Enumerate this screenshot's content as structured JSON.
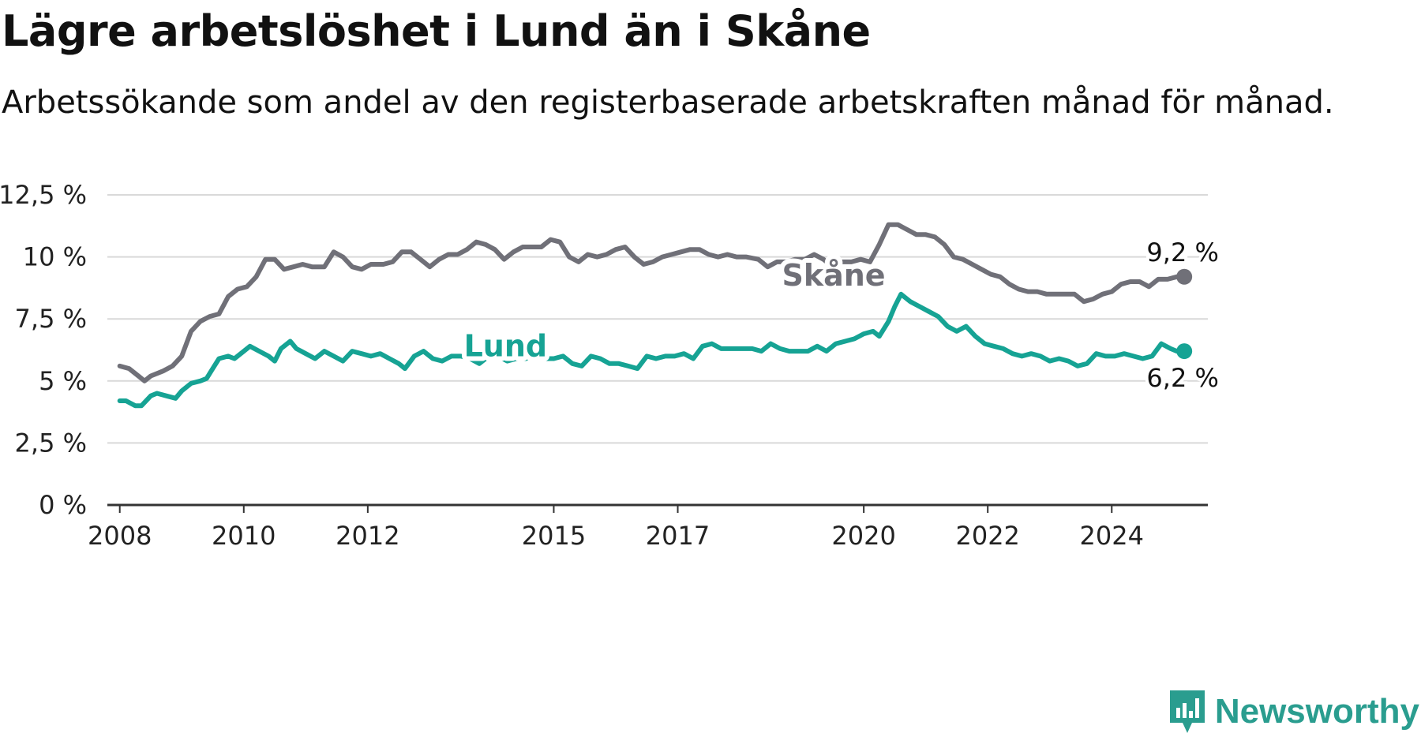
{
  "header": {
    "title": "Lägre arbetslöshet i Lund än i Skåne",
    "subtitle": "Arbetssökande som andel av den registerbaserade arbetskraften månad för månad."
  },
  "brand": {
    "name": "Newsworthy",
    "icon": "newsworthy-logo-icon",
    "color": "#2a9d8f"
  },
  "chart_data": {
    "type": "line",
    "title": "Lägre arbetslöshet i Lund än i Skåne",
    "subtitle": "Arbetssökande som andel av den registerbaserade arbetskraften månad för månad.",
    "xlabel": "",
    "ylabel": "",
    "xlim": [
      2007.8,
      2025.55
    ],
    "ylim": [
      0,
      12.5
    ],
    "y_ticks": [
      0,
      2.5,
      5,
      7.5,
      10,
      12.5
    ],
    "y_tick_labels": [
      "0 %",
      "2,5 %",
      "5 %",
      "7,5 %",
      "10 %",
      "12,5 %"
    ],
    "x_ticks": [
      2008,
      2010,
      2012,
      2015,
      2017,
      2020,
      2022,
      2024
    ],
    "x_tick_labels": [
      "2008",
      "2010",
      "2012",
      "2015",
      "2017",
      "2020",
      "2022",
      "2024"
    ],
    "grid": true,
    "legend": "none (direct labels)",
    "series": [
      {
        "name": "Skåne",
        "color": "#707078",
        "end_label": "9,2 %",
        "points": [
          [
            2008.0,
            5.6
          ],
          [
            2008.15,
            5.5
          ],
          [
            2008.3,
            5.2
          ],
          [
            2008.4,
            5.0
          ],
          [
            2008.5,
            5.2
          ],
          [
            2008.7,
            5.4
          ],
          [
            2008.85,
            5.6
          ],
          [
            2009.0,
            6.0
          ],
          [
            2009.15,
            7.0
          ],
          [
            2009.3,
            7.4
          ],
          [
            2009.45,
            7.6
          ],
          [
            2009.6,
            7.7
          ],
          [
            2009.75,
            8.4
          ],
          [
            2009.9,
            8.7
          ],
          [
            2010.05,
            8.8
          ],
          [
            2010.2,
            9.2
          ],
          [
            2010.35,
            9.9
          ],
          [
            2010.5,
            9.9
          ],
          [
            2010.65,
            9.5
          ],
          [
            2010.8,
            9.6
          ],
          [
            2010.95,
            9.7
          ],
          [
            2011.1,
            9.6
          ],
          [
            2011.3,
            9.6
          ],
          [
            2011.45,
            10.2
          ],
          [
            2011.6,
            10.0
          ],
          [
            2011.75,
            9.6
          ],
          [
            2011.9,
            9.5
          ],
          [
            2012.05,
            9.7
          ],
          [
            2012.25,
            9.7
          ],
          [
            2012.4,
            9.8
          ],
          [
            2012.55,
            10.2
          ],
          [
            2012.7,
            10.2
          ],
          [
            2012.85,
            9.9
          ],
          [
            2013.0,
            9.6
          ],
          [
            2013.15,
            9.9
          ],
          [
            2013.3,
            10.1
          ],
          [
            2013.45,
            10.1
          ],
          [
            2013.6,
            10.3
          ],
          [
            2013.75,
            10.6
          ],
          [
            2013.9,
            10.5
          ],
          [
            2014.05,
            10.3
          ],
          [
            2014.2,
            9.9
          ],
          [
            2014.35,
            10.2
          ],
          [
            2014.5,
            10.4
          ],
          [
            2014.65,
            10.4
          ],
          [
            2014.8,
            10.4
          ],
          [
            2014.95,
            10.7
          ],
          [
            2015.1,
            10.6
          ],
          [
            2015.25,
            10.0
          ],
          [
            2015.4,
            9.8
          ],
          [
            2015.55,
            10.1
          ],
          [
            2015.7,
            10.0
          ],
          [
            2015.85,
            10.1
          ],
          [
            2016.0,
            10.3
          ],
          [
            2016.15,
            10.4
          ],
          [
            2016.3,
            10.0
          ],
          [
            2016.45,
            9.7
          ],
          [
            2016.6,
            9.8
          ],
          [
            2016.75,
            10.0
          ],
          [
            2016.9,
            10.1
          ],
          [
            2017.05,
            10.2
          ],
          [
            2017.2,
            10.3
          ],
          [
            2017.35,
            10.3
          ],
          [
            2017.5,
            10.1
          ],
          [
            2017.65,
            10.0
          ],
          [
            2017.8,
            10.1
          ],
          [
            2017.95,
            10.0
          ],
          [
            2018.1,
            10.0
          ],
          [
            2018.3,
            9.9
          ],
          [
            2018.45,
            9.6
          ],
          [
            2018.6,
            9.8
          ],
          [
            2018.75,
            9.8
          ],
          [
            2018.9,
            9.9
          ],
          [
            2019.05,
            9.9
          ],
          [
            2019.2,
            10.1
          ],
          [
            2019.35,
            9.9
          ],
          [
            2019.5,
            9.6
          ],
          [
            2019.65,
            9.8
          ],
          [
            2019.8,
            9.8
          ],
          [
            2019.95,
            9.9
          ],
          [
            2020.1,
            9.8
          ],
          [
            2020.25,
            10.5
          ],
          [
            2020.4,
            11.3
          ],
          [
            2020.55,
            11.3
          ],
          [
            2020.7,
            11.1
          ],
          [
            2020.85,
            10.9
          ],
          [
            2021.0,
            10.9
          ],
          [
            2021.15,
            10.8
          ],
          [
            2021.3,
            10.5
          ],
          [
            2021.45,
            10.0
          ],
          [
            2021.6,
            9.9
          ],
          [
            2021.75,
            9.7
          ],
          [
            2021.9,
            9.5
          ],
          [
            2022.05,
            9.3
          ],
          [
            2022.2,
            9.2
          ],
          [
            2022.35,
            8.9
          ],
          [
            2022.5,
            8.7
          ],
          [
            2022.65,
            8.6
          ],
          [
            2022.8,
            8.6
          ],
          [
            2022.95,
            8.5
          ],
          [
            2023.1,
            8.5
          ],
          [
            2023.25,
            8.5
          ],
          [
            2023.4,
            8.5
          ],
          [
            2023.55,
            8.2
          ],
          [
            2023.7,
            8.3
          ],
          [
            2023.85,
            8.5
          ],
          [
            2024.0,
            8.6
          ],
          [
            2024.15,
            8.9
          ],
          [
            2024.3,
            9.0
          ],
          [
            2024.45,
            9.0
          ],
          [
            2024.6,
            8.8
          ],
          [
            2024.75,
            9.1
          ],
          [
            2024.9,
            9.1
          ],
          [
            2025.05,
            9.2
          ],
          [
            2025.17,
            9.2
          ]
        ]
      },
      {
        "name": "Lund",
        "color": "#16a394",
        "end_label": "6,2 %",
        "points": [
          [
            2008.0,
            4.2
          ],
          [
            2008.1,
            4.2
          ],
          [
            2008.25,
            4.0
          ],
          [
            2008.35,
            4.0
          ],
          [
            2008.5,
            4.4
          ],
          [
            2008.6,
            4.5
          ],
          [
            2008.75,
            4.4
          ],
          [
            2008.9,
            4.3
          ],
          [
            2009.0,
            4.6
          ],
          [
            2009.15,
            4.9
          ],
          [
            2009.3,
            5.0
          ],
          [
            2009.4,
            5.1
          ],
          [
            2009.5,
            5.5
          ],
          [
            2009.6,
            5.9
          ],
          [
            2009.75,
            6.0
          ],
          [
            2009.85,
            5.9
          ],
          [
            2010.0,
            6.2
          ],
          [
            2010.1,
            6.4
          ],
          [
            2010.25,
            6.2
          ],
          [
            2010.4,
            6.0
          ],
          [
            2010.5,
            5.8
          ],
          [
            2010.6,
            6.3
          ],
          [
            2010.75,
            6.6
          ],
          [
            2010.85,
            6.3
          ],
          [
            2011.0,
            6.1
          ],
          [
            2011.15,
            5.9
          ],
          [
            2011.3,
            6.2
          ],
          [
            2011.45,
            6.0
          ],
          [
            2011.6,
            5.8
          ],
          [
            2011.75,
            6.2
          ],
          [
            2011.9,
            6.1
          ],
          [
            2012.05,
            6.0
          ],
          [
            2012.2,
            6.1
          ],
          [
            2012.35,
            5.9
          ],
          [
            2012.5,
            5.7
          ],
          [
            2012.6,
            5.5
          ],
          [
            2012.75,
            6.0
          ],
          [
            2012.9,
            6.2
          ],
          [
            2013.05,
            5.9
          ],
          [
            2013.2,
            5.8
          ],
          [
            2013.35,
            6.0
          ],
          [
            2013.5,
            6.0
          ],
          [
            2013.65,
            5.9
          ],
          [
            2013.8,
            5.7
          ],
          [
            2013.95,
            6.0
          ],
          [
            2014.1,
            6.0
          ],
          [
            2014.25,
            5.8
          ],
          [
            2014.4,
            5.9
          ],
          [
            2014.55,
            5.9
          ],
          [
            2014.7,
            6.1
          ],
          [
            2014.85,
            5.9
          ],
          [
            2015.0,
            5.9
          ],
          [
            2015.15,
            6.0
          ],
          [
            2015.3,
            5.7
          ],
          [
            2015.45,
            5.6
          ],
          [
            2015.6,
            6.0
          ],
          [
            2015.75,
            5.9
          ],
          [
            2015.9,
            5.7
          ],
          [
            2016.05,
            5.7
          ],
          [
            2016.2,
            5.6
          ],
          [
            2016.35,
            5.5
          ],
          [
            2016.5,
            6.0
          ],
          [
            2016.65,
            5.9
          ],
          [
            2016.8,
            6.0
          ],
          [
            2016.95,
            6.0
          ],
          [
            2017.1,
            6.1
          ],
          [
            2017.25,
            5.9
          ],
          [
            2017.4,
            6.4
          ],
          [
            2017.55,
            6.5
          ],
          [
            2017.7,
            6.3
          ],
          [
            2017.85,
            6.3
          ],
          [
            2018.05,
            6.3
          ],
          [
            2018.2,
            6.3
          ],
          [
            2018.35,
            6.2
          ],
          [
            2018.5,
            6.5
          ],
          [
            2018.65,
            6.3
          ],
          [
            2018.8,
            6.2
          ],
          [
            2018.95,
            6.2
          ],
          [
            2019.1,
            6.2
          ],
          [
            2019.25,
            6.4
          ],
          [
            2019.4,
            6.2
          ],
          [
            2019.55,
            6.5
          ],
          [
            2019.7,
            6.6
          ],
          [
            2019.85,
            6.7
          ],
          [
            2020.0,
            6.9
          ],
          [
            2020.15,
            7.0
          ],
          [
            2020.25,
            6.8
          ],
          [
            2020.4,
            7.4
          ],
          [
            2020.5,
            8.0
          ],
          [
            2020.6,
            8.5
          ],
          [
            2020.75,
            8.2
          ],
          [
            2020.9,
            8.0
          ],
          [
            2021.05,
            7.8
          ],
          [
            2021.2,
            7.6
          ],
          [
            2021.35,
            7.2
          ],
          [
            2021.5,
            7.0
          ],
          [
            2021.65,
            7.2
          ],
          [
            2021.8,
            6.8
          ],
          [
            2021.95,
            6.5
          ],
          [
            2022.1,
            6.4
          ],
          [
            2022.25,
            6.3
          ],
          [
            2022.4,
            6.1
          ],
          [
            2022.55,
            6.0
          ],
          [
            2022.7,
            6.1
          ],
          [
            2022.85,
            6.0
          ],
          [
            2023.0,
            5.8
          ],
          [
            2023.15,
            5.9
          ],
          [
            2023.3,
            5.8
          ],
          [
            2023.45,
            5.6
          ],
          [
            2023.6,
            5.7
          ],
          [
            2023.75,
            6.1
          ],
          [
            2023.9,
            6.0
          ],
          [
            2024.05,
            6.0
          ],
          [
            2024.2,
            6.1
          ],
          [
            2024.35,
            6.0
          ],
          [
            2024.5,
            5.9
          ],
          [
            2024.65,
            6.0
          ],
          [
            2024.8,
            6.5
          ],
          [
            2024.95,
            6.3
          ],
          [
            2025.05,
            6.2
          ],
          [
            2025.17,
            6.2
          ]
        ]
      }
    ]
  }
}
